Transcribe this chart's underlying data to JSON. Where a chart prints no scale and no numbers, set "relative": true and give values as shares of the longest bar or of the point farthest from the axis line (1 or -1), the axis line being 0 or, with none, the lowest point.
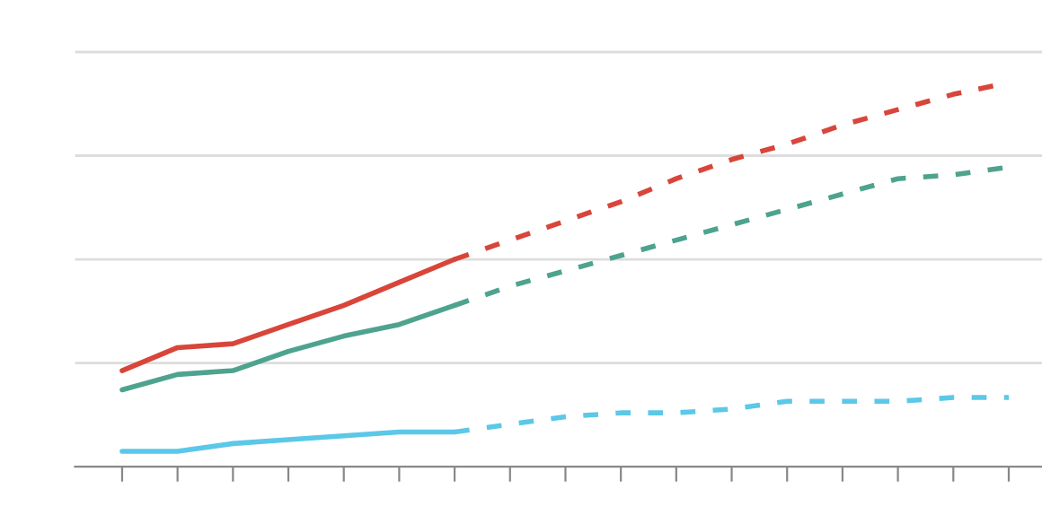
{
  "chart_data": {
    "type": "line",
    "relative": true,
    "grid": "y",
    "categories": [
      null,
      null,
      null,
      null,
      null,
      null,
      null,
      null,
      null,
      null,
      null,
      null,
      null,
      null,
      null,
      null,
      null
    ],
    "series": [
      {
        "color": "#d9453a",
        "line_style": "solid",
        "values": [
          0.25,
          0.31,
          0.32,
          0.37,
          0.42,
          0.48,
          0.54,
          null,
          null,
          null,
          null,
          null,
          null,
          null,
          null,
          null,
          null
        ]
      },
      {
        "color": "#d9453a",
        "line_style": "dashed",
        "values": [
          null,
          null,
          null,
          null,
          null,
          null,
          0.54,
          0.59,
          0.64,
          0.69,
          0.75,
          0.8,
          0.84,
          0.89,
          0.93,
          0.97,
          1
        ]
      },
      {
        "color": "#4ea38f",
        "line_style": "solid",
        "values": [
          0.2,
          0.24,
          0.25,
          0.3,
          0.34,
          0.37,
          0.42,
          null,
          null,
          null,
          null,
          null,
          null,
          null,
          null,
          null,
          null
        ]
      },
      {
        "color": "#4ea38f",
        "line_style": "dashed",
        "values": [
          null,
          null,
          null,
          null,
          null,
          null,
          0.42,
          0.47,
          0.51,
          0.55,
          0.59,
          0.63,
          0.67,
          0.71,
          0.75,
          0.76,
          0.78
        ]
      },
      {
        "color": "#5bc8e8",
        "line_style": "solid",
        "values": [
          0.04,
          0.04,
          0.06,
          0.07,
          0.08,
          0.09,
          0.09,
          null,
          null,
          null,
          null,
          null,
          null,
          null,
          null,
          null,
          null
        ]
      },
      {
        "color": "#5bc8e8",
        "line_style": "dashed",
        "values": [
          null,
          null,
          null,
          null,
          null,
          null,
          0.09,
          0.11,
          0.13,
          0.14,
          0.14,
          0.15,
          0.17,
          0.17,
          0.17,
          0.18,
          0.18
        ]
      }
    ]
  }
}
